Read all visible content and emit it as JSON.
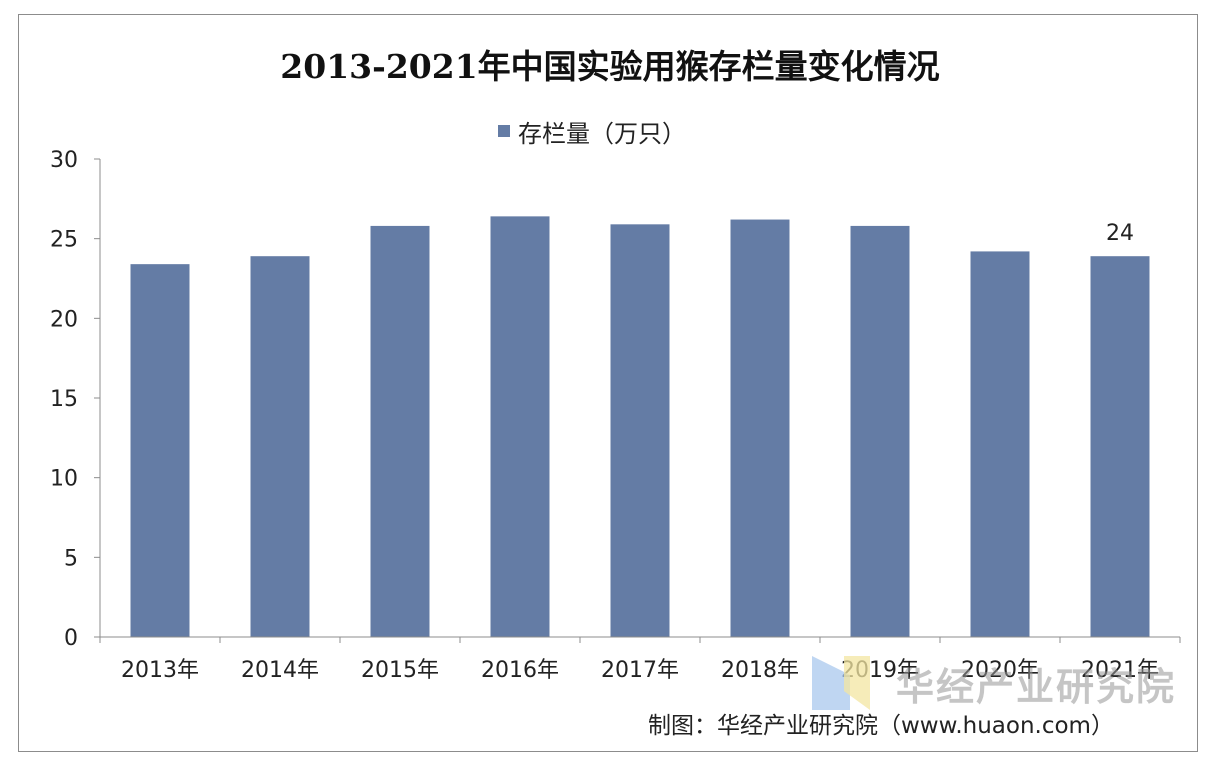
{
  "chart_data": {
    "type": "bar",
    "title": "2013-2021年中国实验用猴存栏量变化情况",
    "categories": [
      "2013年",
      "2014年",
      "2015年",
      "2016年",
      "2017年",
      "2018年",
      "2019年",
      "2020年",
      "2021年"
    ],
    "series": [
      {
        "name": "存栏量（万只）",
        "values": [
          23.4,
          23.9,
          25.8,
          26.4,
          25.9,
          26.2,
          25.8,
          24.2,
          23.9
        ],
        "color": "#647ca5"
      }
    ],
    "data_labels": [
      {
        "index": 8,
        "text": "24"
      }
    ],
    "yticks": [
      "0",
      "5",
      "10",
      "15",
      "20",
      "25",
      "30"
    ],
    "ylim": [
      0,
      30
    ],
    "xlabel": "",
    "ylabel": "",
    "grid": false,
    "legend_position": "top-center"
  },
  "source": "制图：华经产业研究院（www.huaon.com）",
  "watermark": "华经产业研究院"
}
